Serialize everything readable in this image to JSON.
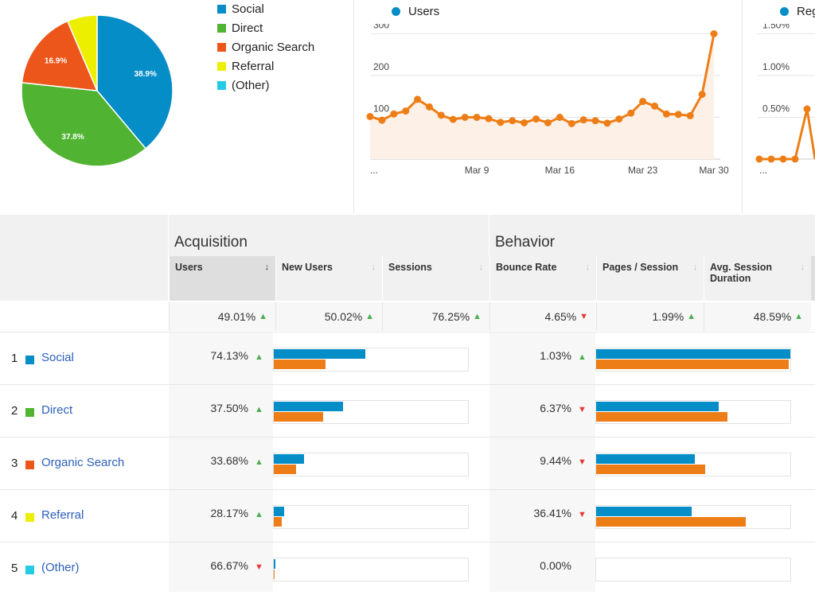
{
  "pie": {
    "legend": [
      {
        "label": "Social",
        "color": "#058dc7"
      },
      {
        "label": "Direct",
        "color": "#50b432"
      },
      {
        "label": "Organic Search",
        "color": "#ed561b"
      },
      {
        "label": "Referral",
        "color": "#edef00"
      },
      {
        "label": "(Other)",
        "color": "#24cbe5"
      }
    ],
    "slices": [
      {
        "label": "Social",
        "value": 38.9,
        "display": "38.9%",
        "color": "#058dc7"
      },
      {
        "label": "Direct",
        "value": 37.8,
        "display": "37.8%",
        "color": "#50b432"
      },
      {
        "label": "Organic Search",
        "value": 16.9,
        "display": "16.9%",
        "color": "#ed561b"
      },
      {
        "label": "Referral",
        "value": 6.4,
        "display": "",
        "color": "#edef00"
      }
    ]
  },
  "users_chart": {
    "legend": "Users",
    "y_ticks": [
      "300",
      "200",
      "100"
    ],
    "x_ticks": [
      "...",
      "Mar 9",
      "Mar 16",
      "Mar 23",
      "Mar 30"
    ]
  },
  "reg_chart": {
    "legend": "Reg",
    "y_ticks": [
      "1.50%",
      "1.00%",
      "0.50%"
    ],
    "x_ticks": [
      "..."
    ]
  },
  "chart_data": [
    {
      "type": "pie",
      "categories": [
        "Social",
        "Direct",
        "Organic Search",
        "Referral"
      ],
      "values": [
        38.9,
        37.8,
        16.9,
        6.4
      ]
    },
    {
      "type": "line",
      "series": [
        {
          "name": "Users",
          "values": [
            102,
            93,
            108,
            115,
            143,
            125,
            105,
            95,
            100,
            100,
            97,
            88,
            92,
            87,
            96,
            87,
            100,
            85,
            94,
            92,
            86,
            96,
            110,
            138,
            127,
            108,
            107,
            104,
            155,
            300
          ]
        }
      ],
      "x": [
        "...",
        "",
        "",
        "",
        "",
        "",
        "",
        "",
        "",
        "Mar 9",
        "",
        "",
        "",
        "",
        "",
        "",
        "Mar 16",
        "",
        "",
        "",
        "",
        "",
        "",
        "Mar 23",
        "",
        "",
        "",
        "",
        "",
        "Mar 30"
      ],
      "ylim": [
        0,
        320
      ]
    },
    {
      "type": "line",
      "series": [
        {
          "name": "Reg",
          "values": [
            0,
            0,
            0,
            0,
            0.6,
            0
          ]
        }
      ],
      "ylim": [
        0,
        1.6
      ]
    }
  ],
  "table": {
    "group_acq": "Acquisition",
    "group_beh": "Behavior",
    "headers": {
      "users": "Users",
      "new_users": "New Users",
      "sessions": "Sessions",
      "bounce": "Bounce Rate",
      "pages": "Pages / Session",
      "duration": "Avg. Session Duration"
    },
    "totals": {
      "users": "49.01%",
      "new_users": "50.02%",
      "sessions": "76.25%",
      "bounce": "4.65%",
      "pages": "1.99%",
      "duration": "48.59%"
    },
    "rows": [
      {
        "num": "1",
        "label": "Social",
        "color": "#058dc7",
        "users": "74.13%",
        "users_dir": "up",
        "bounce": "1.03%",
        "bounce_dir": "up",
        "acq_blue": 0.47,
        "acq_orange": 0.265,
        "beh_blue": 1.0,
        "beh_orange": 0.99
      },
      {
        "num": "2",
        "label": "Direct",
        "color": "#50b432",
        "users": "37.50%",
        "users_dir": "up",
        "bounce": "6.37%",
        "bounce_dir": "down",
        "acq_blue": 0.355,
        "acq_orange": 0.255,
        "beh_blue": 0.63,
        "beh_orange": 0.675
      },
      {
        "num": "3",
        "label": "Organic Search",
        "color": "#ed561b",
        "users": "33.68%",
        "users_dir": "up",
        "bounce": "9.44%",
        "bounce_dir": "down",
        "acq_blue": 0.155,
        "acq_orange": 0.115,
        "beh_blue": 0.51,
        "beh_orange": 0.56
      },
      {
        "num": "4",
        "label": "Referral",
        "color": "#edef00",
        "users": "28.17%",
        "users_dir": "up",
        "bounce": "36.41%",
        "bounce_dir": "down",
        "acq_blue": 0.055,
        "acq_orange": 0.04,
        "beh_blue": 0.49,
        "beh_orange": 0.77
      },
      {
        "num": "5",
        "label": "(Other)",
        "color": "#24cbe5",
        "users": "66.67%",
        "users_dir": "down",
        "bounce": "0.00%",
        "bounce_dir": "",
        "acq_blue": 0.008,
        "acq_orange": 0.006,
        "beh_blue": 0,
        "beh_orange": 0
      }
    ]
  },
  "colors": {
    "blue": "#058dc7",
    "orange": "#ed7e17",
    "up": "#4caf50",
    "down": "#e53935"
  }
}
